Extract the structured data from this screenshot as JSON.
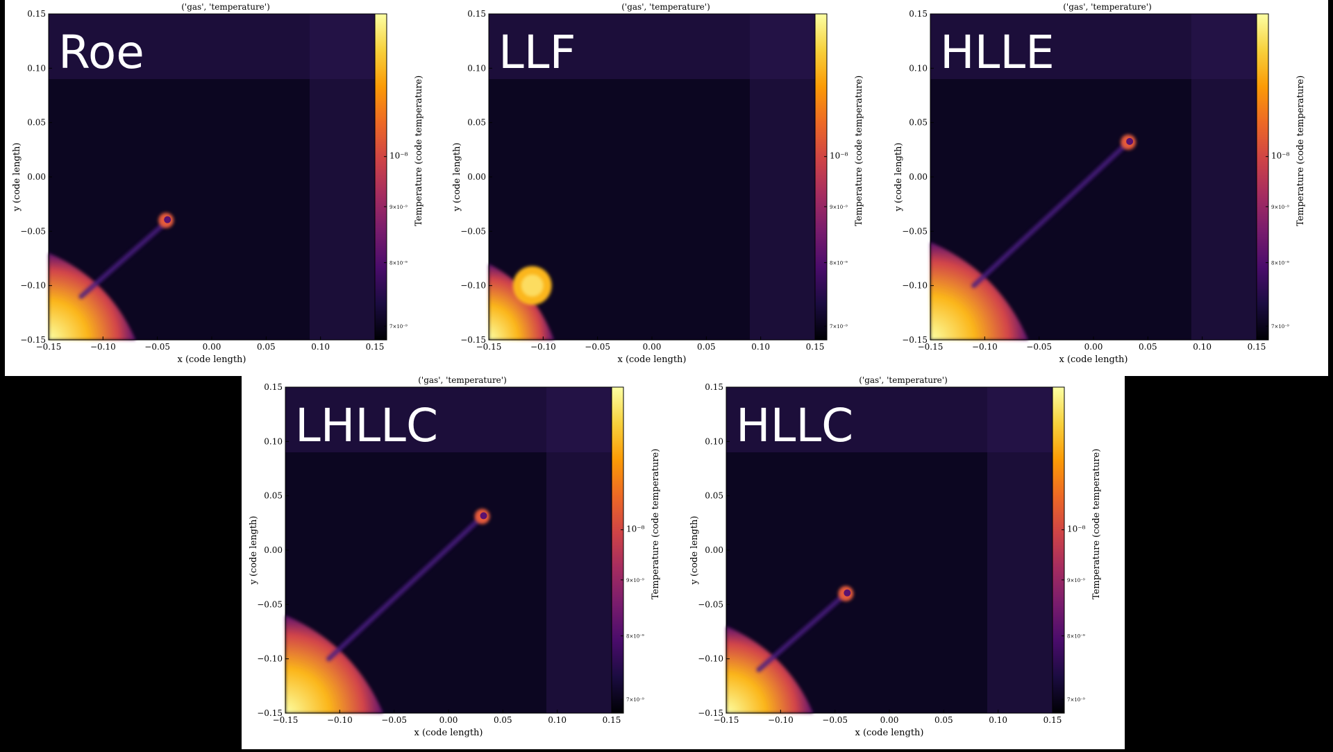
{
  "colors": {
    "background": "#000000",
    "panel": "#ffffff",
    "plot_background": "#0c0621",
    "colormap": [
      "#000004",
      "#1b0c41",
      "#4a0c6b",
      "#781c6d",
      "#a52c60",
      "#cf4446",
      "#ed6925",
      "#fb9b06",
      "#f7d13d",
      "#fcffa4"
    ]
  },
  "chart_data": [
    {
      "type": "heatmap",
      "solver": "Roe",
      "title": "('gas', 'temperature')",
      "xlabel": "x  (code length)",
      "ylabel": "y  (code length)",
      "xlim": [
        -0.15,
        0.15
      ],
      "ylim": [
        -0.15,
        0.15
      ],
      "xticks": [
        "−0.15",
        "−0.10",
        "−0.05",
        "0.00",
        "0.05",
        "0.10",
        "0.15"
      ],
      "yticks": [
        "−0.15",
        "−0.10",
        "−0.05",
        "0.00",
        "0.05",
        "0.10",
        "0.15"
      ],
      "colorbar": {
        "label": "Temperature  (code temperature)",
        "scale": "log",
        "ticks": [
          "7×10⁻⁹",
          "8×10⁻⁹",
          "9×10⁻⁹",
          "10⁻⁸"
        ],
        "tick_values": [
          7e-09,
          8e-09,
          9e-09,
          1e-08
        ]
      },
      "features": [
        {
          "kind": "hot-corner",
          "x": -0.15,
          "y": -0.15,
          "extent_x": 0.08,
          "extent_y": 0.08
        },
        {
          "kind": "jet",
          "x0": -0.12,
          "y0": -0.11,
          "x1": -0.04,
          "y1": -0.04
        },
        {
          "kind": "plume-head",
          "x": -0.042,
          "y": -0.04
        }
      ]
    },
    {
      "type": "heatmap",
      "solver": "LLF",
      "title": "('gas', 'temperature')",
      "xlabel": "x  (code length)",
      "ylabel": "y  (code length)",
      "xlim": [
        -0.15,
        0.15
      ],
      "ylim": [
        -0.15,
        0.15
      ],
      "xticks": [
        "−0.15",
        "−0.10",
        "−0.05",
        "0.00",
        "0.05",
        "0.10",
        "0.15"
      ],
      "yticks": [
        "−0.15",
        "−0.10",
        "−0.05",
        "0.00",
        "0.05",
        "0.10",
        "0.15"
      ],
      "colorbar": {
        "label": "Temperature  (code temperature)",
        "scale": "log",
        "ticks": [
          "7×10⁻⁹",
          "8×10⁻⁹",
          "9×10⁻⁹",
          "10⁻⁸"
        ],
        "tick_values": [
          7e-09,
          8e-09,
          9e-09,
          1e-08
        ]
      },
      "features": [
        {
          "kind": "hot-corner",
          "x": -0.15,
          "y": -0.15,
          "extent_x": 0.06,
          "extent_y": 0.07
        },
        {
          "kind": "blob",
          "x": -0.11,
          "y": -0.1
        }
      ]
    },
    {
      "type": "heatmap",
      "solver": "HLLE",
      "title": "('gas', 'temperature')",
      "xlabel": "x  (code length)",
      "ylabel": "y  (code length)",
      "xlim": [
        -0.15,
        0.15
      ],
      "ylim": [
        -0.15,
        0.15
      ],
      "xticks": [
        "−0.15",
        "−0.10",
        "−0.05",
        "0.00",
        "0.05",
        "0.10",
        "0.15"
      ],
      "yticks": [
        "−0.15",
        "−0.10",
        "−0.05",
        "0.00",
        "0.05",
        "0.10",
        "0.15"
      ],
      "colorbar": {
        "label": "Temperature  (code temperature)",
        "scale": "log",
        "ticks": [
          "7×10⁻⁹",
          "8×10⁻⁹",
          "9×10⁻⁹",
          "10⁻⁸"
        ],
        "tick_values": [
          7e-09,
          8e-09,
          9e-09,
          1e-08
        ]
      },
      "features": [
        {
          "kind": "hot-corner",
          "x": -0.15,
          "y": -0.15,
          "extent_x": 0.09,
          "extent_y": 0.09
        },
        {
          "kind": "jet",
          "x0": -0.11,
          "y0": -0.1,
          "x1": 0.03,
          "y1": 0.03
        },
        {
          "kind": "plume-head",
          "x": 0.032,
          "y": 0.032
        }
      ]
    },
    {
      "type": "heatmap",
      "solver": "LHLLC",
      "title": "('gas', 'temperature')",
      "xlabel": "x  (code length)",
      "ylabel": "y  (code length)",
      "xlim": [
        -0.15,
        0.15
      ],
      "ylim": [
        -0.15,
        0.15
      ],
      "xticks": [
        "−0.15",
        "−0.10",
        "−0.05",
        "0.00",
        "0.05",
        "0.10",
        "0.15"
      ],
      "yticks": [
        "−0.15",
        "−0.10",
        "−0.05",
        "0.00",
        "0.05",
        "0.10",
        "0.15"
      ],
      "colorbar": {
        "label": "Temperature  (code temperature)",
        "scale": "log",
        "ticks": [
          "7×10⁻⁹",
          "8×10⁻⁹",
          "9×10⁻⁹",
          "10⁻⁸"
        ],
        "tick_values": [
          7e-09,
          8e-09,
          9e-09,
          1e-08
        ]
      },
      "features": [
        {
          "kind": "hot-corner",
          "x": -0.15,
          "y": -0.15,
          "extent_x": 0.09,
          "extent_y": 0.09
        },
        {
          "kind": "jet",
          "x0": -0.11,
          "y0": -0.1,
          "x1": 0.03,
          "y1": 0.03
        },
        {
          "kind": "plume-head",
          "x": 0.031,
          "y": 0.031
        }
      ]
    },
    {
      "type": "heatmap",
      "solver": "HLLC",
      "title": "('gas', 'temperature')",
      "xlabel": "x  (code length)",
      "ylabel": "y  (code length)",
      "xlim": [
        -0.15,
        0.15
      ],
      "ylim": [
        -0.15,
        0.15
      ],
      "xticks": [
        "−0.15",
        "−0.10",
        "−0.05",
        "0.00",
        "0.05",
        "0.10",
        "0.15"
      ],
      "yticks": [
        "−0.15",
        "−0.10",
        "−0.05",
        "0.00",
        "0.05",
        "0.10",
        "0.15"
      ],
      "colorbar": {
        "label": "Temperature  (code temperature)",
        "scale": "log",
        "ticks": [
          "7×10⁻⁹",
          "8×10⁻⁹",
          "9×10⁻⁹",
          "10⁻⁸"
        ],
        "tick_values": [
          7e-09,
          8e-09,
          9e-09,
          1e-08
        ]
      },
      "features": [
        {
          "kind": "hot-corner",
          "x": -0.15,
          "y": -0.15,
          "extent_x": 0.08,
          "extent_y": 0.08
        },
        {
          "kind": "jet",
          "x0": -0.12,
          "y0": -0.11,
          "x1": -0.04,
          "y1": -0.04
        },
        {
          "kind": "plume-head",
          "x": -0.04,
          "y": -0.04
        }
      ]
    }
  ]
}
